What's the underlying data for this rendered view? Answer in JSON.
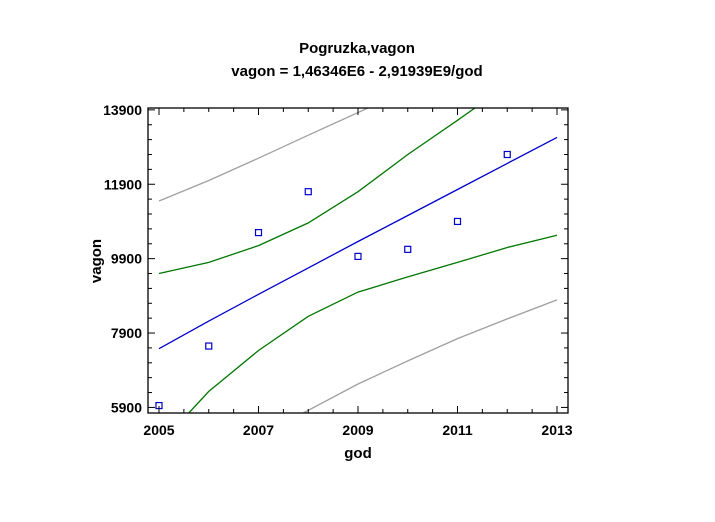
{
  "chart_data": {
    "type": "scatter",
    "title": "Pogruzka,vagon",
    "subtitle": "vagon = 1,46346E6 - 2,91939E9/god",
    "xlabel": "god",
    "ylabel": "vagon",
    "xlim": [
      2005,
      2013
    ],
    "ylim": [
      5750,
      13950
    ],
    "x_ticks": [
      2005,
      2007,
      2009,
      2011,
      2013
    ],
    "y_ticks": [
      5900,
      7900,
      9900,
      11900,
      13900
    ],
    "x_tick_labels": [
      "2005",
      "2007",
      "2009",
      "2011",
      "2013"
    ],
    "y_tick_labels": [
      "5900",
      "7900",
      "9900",
      "11900",
      "13900"
    ],
    "grid": false,
    "series": [
      {
        "kind": "points",
        "color": "#0000cc",
        "x": [
          2005,
          2006,
          2007,
          2008,
          2009,
          2010,
          2011,
          2012
        ],
        "y": [
          5950,
          7550,
          10600,
          11700,
          9960,
          10150,
          10900,
          12700
        ]
      },
      {
        "kind": "fit",
        "color": "#0000cc",
        "x": [
          2005,
          2006,
          2007,
          2008,
          2009,
          2010,
          2011,
          2012,
          2013
        ],
        "y": [
          7480,
          8220,
          8940,
          9650,
          10360,
          11060,
          11760,
          12460,
          13160
        ]
      },
      {
        "kind": "confidence-upper",
        "color": "#007700",
        "x": [
          2005,
          2006,
          2007,
          2008,
          2009,
          2010,
          2011,
          2011.35
        ],
        "y": [
          9500,
          9800,
          10250,
          10860,
          11700,
          12700,
          13620,
          13950
        ]
      },
      {
        "kind": "confidence-lower",
        "color": "#007700",
        "x": [
          2005.6,
          2006,
          2007,
          2008,
          2009,
          2010,
          2011,
          2012,
          2013
        ],
        "y": [
          5750,
          6330,
          7430,
          8350,
          9000,
          9410,
          9800,
          10200,
          10530
        ]
      },
      {
        "kind": "prediction-upper",
        "color": "#a0a0a0",
        "x": [
          2005,
          2006,
          2007,
          2008,
          2009.2
        ],
        "y": [
          11450,
          12000,
          12600,
          13220,
          13950
        ]
      },
      {
        "kind": "prediction-lower",
        "color": "#a0a0a0",
        "x": [
          2007.9,
          2009,
          2010,
          2011,
          2012,
          2013
        ],
        "y": [
          5750,
          6530,
          7150,
          7750,
          8280,
          8790
        ]
      }
    ]
  }
}
